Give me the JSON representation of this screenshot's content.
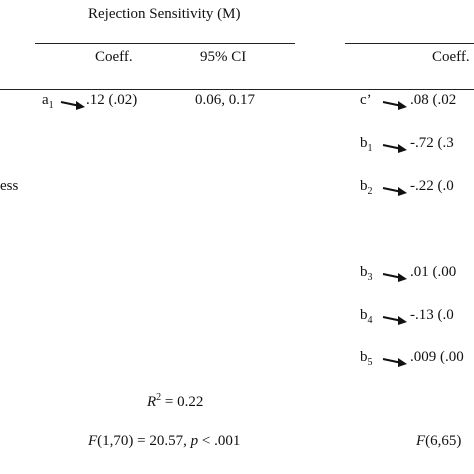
{
  "table": {
    "group_headers": [
      "Rejection Sensitivity (M)"
    ],
    "column_headers": [
      "Coeff.",
      "95% CI",
      "Coeff."
    ],
    "row_label_fragment": "ess",
    "left_rows": [
      {
        "var": "a",
        "sub": "1",
        "coeff": ".12 (.02)",
        "ci": "0.06, 0.17"
      }
    ],
    "right_rows": [
      {
        "var": "c’",
        "sub": null,
        "coeff": ".08 (.02"
      },
      {
        "var": "b",
        "sub": "1",
        "coeff": "-.72 (.3"
      },
      {
        "var": "b",
        "sub": "2",
        "coeff": "-.22 (.0"
      },
      {
        "var": "b",
        "sub": "3",
        "coeff": ".01 (.00"
      },
      {
        "var": "b",
        "sub": "4",
        "coeff": "-.13 (.0"
      },
      {
        "var": "b",
        "sub": "5",
        "coeff": ".009 (.00"
      }
    ],
    "r2": {
      "symbol": "R",
      "power": "2",
      "rest": " = 0.22"
    },
    "f_left": {
      "f": "F",
      "rest": "(1,70) = 20.57, ",
      "p": "p",
      "tail": " < .001"
    },
    "f_right": {
      "f": "F",
      "rest": "(6,65)"
    }
  }
}
